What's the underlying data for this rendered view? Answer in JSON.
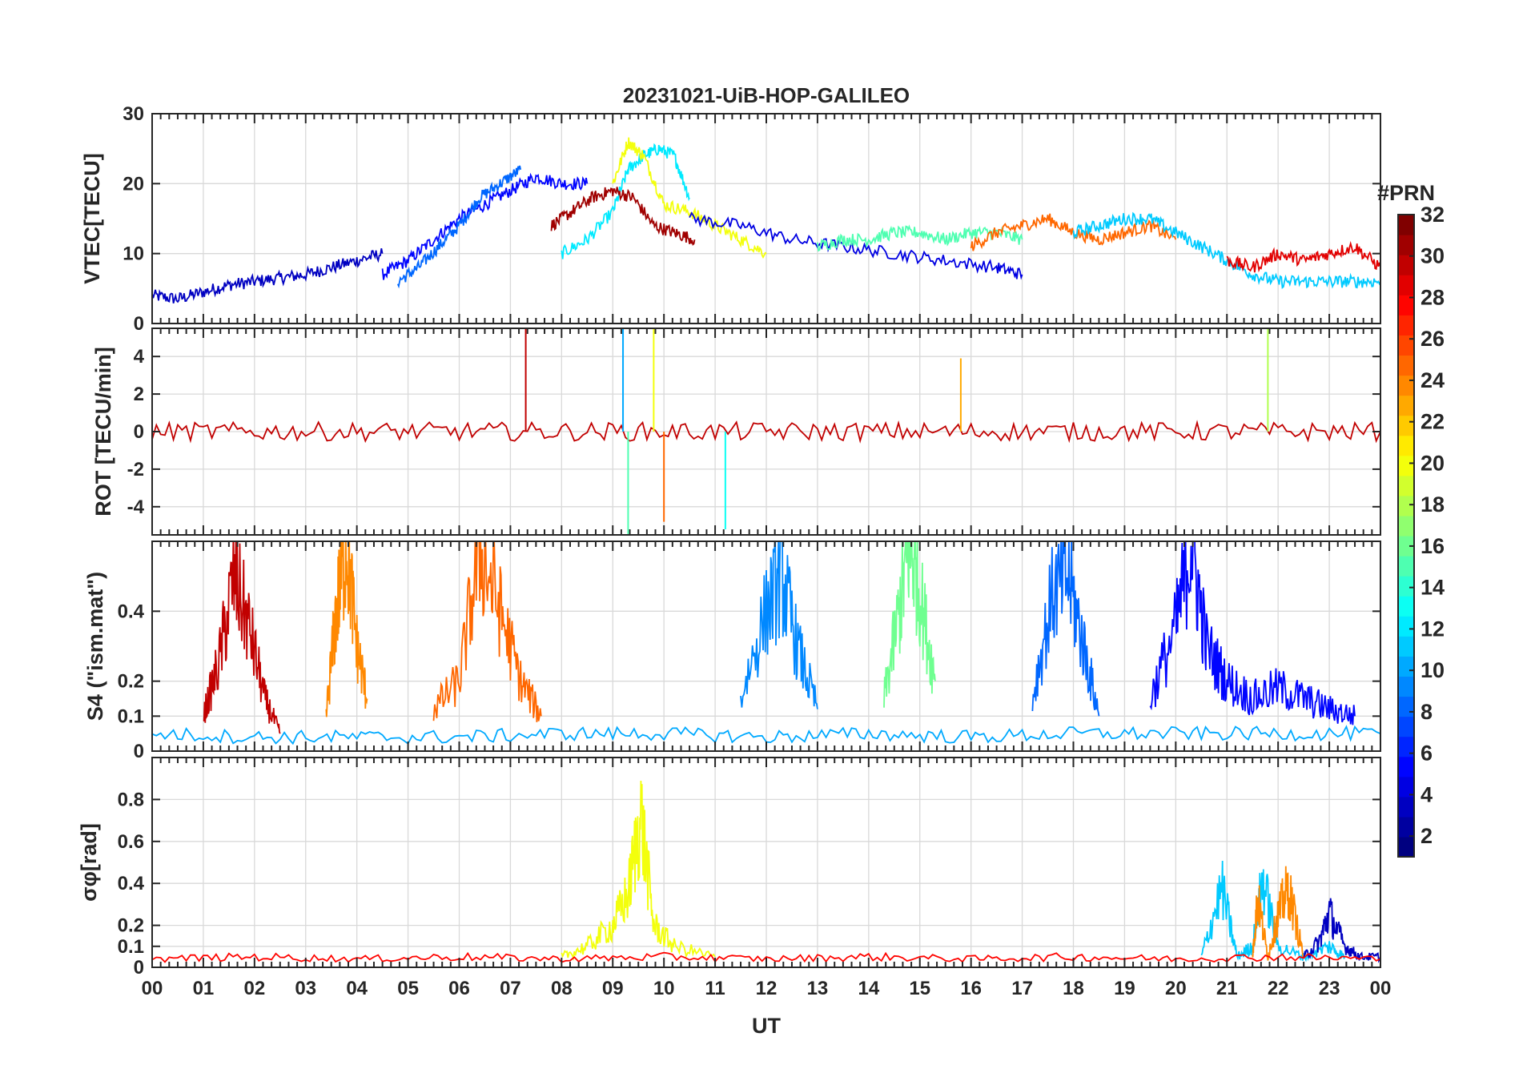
{
  "chart_data": {
    "type": "line",
    "title": "20231021-UiB-HOP-GALILEO",
    "xlabel": "UT",
    "x_ticks": [
      "00",
      "01",
      "02",
      "03",
      "04",
      "05",
      "06",
      "07",
      "08",
      "09",
      "10",
      "11",
      "12",
      "13",
      "14",
      "15",
      "16",
      "17",
      "18",
      "19",
      "20",
      "21",
      "22",
      "23",
      "00"
    ],
    "xlim_hours": [
      0,
      24
    ],
    "grid": true,
    "colorbar": {
      "label": "#PRN",
      "range": [
        1,
        32
      ],
      "ticks": [
        "2",
        "4",
        "6",
        "8",
        "10",
        "12",
        "14",
        "16",
        "18",
        "20",
        "22",
        "24",
        "26",
        "28",
        "30",
        "32"
      ],
      "colormap": "jet",
      "placement": "right"
    },
    "panels": [
      {
        "id": "vtec",
        "ylabel": "VTEC[TECU]",
        "ylim": [
          0,
          30
        ],
        "yticks": [
          "0",
          "10",
          "20",
          "30"
        ],
        "series": [
          {
            "prn": 3,
            "x": [
              0.0,
              0.5,
              1.0,
              1.5,
              2.0,
              2.5,
              3.0,
              3.5,
              4.0,
              4.5
            ],
            "y": [
              4,
              3.5,
              4.5,
              5.5,
              6,
              6.5,
              7,
              8,
              9,
              10
            ]
          },
          {
            "prn": 5,
            "x": [
              4.5,
              5.0,
              5.5,
              6.0,
              6.5,
              7.0,
              7.5,
              8.0,
              8.5
            ],
            "y": [
              7,
              9,
              12,
              15,
              17,
              19,
              21,
              20,
              20
            ]
          },
          {
            "prn": 8,
            "x": [
              4.8,
              5.2,
              5.6,
              6.0,
              6.4,
              6.8,
              7.2
            ],
            "y": [
              6,
              8,
              11,
              14,
              18,
              20,
              22
            ]
          },
          {
            "prn": 12,
            "x": [
              8.0,
              8.5,
              9.0,
              9.3,
              9.6,
              9.9,
              10.2,
              10.5
            ],
            "y": [
              10,
              12,
              16,
              22,
              24,
              25,
              24,
              18
            ]
          },
          {
            "prn": 20,
            "x": [
              9.0,
              9.3,
              9.6,
              10.0,
              10.5,
              11.0,
              11.5,
              12.0
            ],
            "y": [
              20,
              26,
              24,
              17,
              16,
              14,
              12,
              10
            ]
          },
          {
            "prn": 31,
            "x": [
              7.8,
              8.2,
              8.6,
              9.0,
              9.4,
              9.8,
              10.2,
              10.6
            ],
            "y": [
              14,
              16,
              18,
              19,
              18,
              14,
              13,
              12
            ]
          },
          {
            "prn": 4,
            "x": [
              10.5,
              11.5,
              12.5,
              13.5,
              14.5,
              15.5,
              16.5,
              17.0
            ],
            "y": [
              15,
              14,
              12,
              11,
              10,
              9,
              8,
              7
            ]
          },
          {
            "prn": 15,
            "x": [
              13.0,
              13.5,
              14.0,
              14.5,
              15.0,
              15.5,
              16.0,
              16.5,
              17.0
            ],
            "y": [
              11,
              12,
              12,
              13,
              13,
              12,
              13,
              13,
              12
            ]
          },
          {
            "prn": 25,
            "x": [
              16.0,
              16.5,
              17.0,
              17.5,
              18.0,
              18.5,
              19.0,
              19.5,
              20.0
            ],
            "y": [
              11,
              13,
              14,
              15,
              13,
              12,
              13,
              14,
              12
            ]
          },
          {
            "prn": 11,
            "x": [
              18.0,
              18.5,
              19.0,
              19.5,
              20.0,
              20.5,
              21.0,
              21.5,
              22.0,
              22.5,
              23.0,
              23.5,
              24.0
            ],
            "y": [
              13,
              14,
              15,
              15,
              13,
              11,
              9,
              7,
              6,
              6,
              6,
              6,
              6
            ]
          },
          {
            "prn": 29,
            "x": [
              21.0,
              21.5,
              22.0,
              22.5,
              23.0,
              23.5,
              24.0
            ],
            "y": [
              9,
              8,
              10,
              9,
              10,
              11,
              8
            ]
          }
        ]
      },
      {
        "id": "rot",
        "ylabel": "ROT [TECU/min]",
        "ylim": [
          -5.5,
          5.5
        ],
        "yticks": [
          "-4",
          "-2",
          "0",
          "2",
          "4"
        ],
        "series": [
          {
            "prn": 30,
            "x": [
              0,
              2,
              4,
              6,
              8,
              10,
              12,
              14,
              16,
              18,
              20,
              22,
              24
            ],
            "y": [
              0,
              0,
              0,
              0,
              0,
              0,
              0,
              0,
              0,
              0,
              0,
              0,
              0
            ]
          }
        ],
        "notable_spikes": [
          {
            "x": 9.2,
            "y": 5.5
          },
          {
            "x": 9.3,
            "y": -5.5
          },
          {
            "x": 9.8,
            "y": 5.5
          },
          {
            "x": 10.0,
            "y": -4.8
          },
          {
            "x": 7.3,
            "y": 5.5
          },
          {
            "x": 11.2,
            "y": -5.2
          },
          {
            "x": 21.8,
            "y": 5.5
          },
          {
            "x": 15.8,
            "y": 3.9
          }
        ]
      },
      {
        "id": "s4",
        "ylabel": "S4 (\"ism.mat\")",
        "ylim": [
          0,
          0.6
        ],
        "yticks": [
          "0",
          "0.1",
          "0.2",
          "0.4"
        ],
        "series": [
          {
            "prn": 30,
            "x": [
              1.0,
              1.3,
              1.6,
              1.9,
              2.2,
              2.5
            ],
            "y": [
              0.1,
              0.25,
              0.5,
              0.35,
              0.15,
              0.05
            ]
          },
          {
            "prn": 24,
            "x": [
              3.4,
              3.6,
              3.8,
              4.0,
              4.2
            ],
            "y": [
              0.1,
              0.4,
              0.6,
              0.3,
              0.15
            ]
          },
          {
            "prn": 25,
            "x": [
              5.5,
              6.0,
              6.4,
              6.8,
              7.2,
              7.6
            ],
            "y": [
              0.12,
              0.2,
              0.58,
              0.4,
              0.2,
              0.1
            ]
          },
          {
            "prn": 9,
            "x": [
              11.5,
              12.0,
              12.3,
              12.6,
              13.0
            ],
            "y": [
              0.15,
              0.4,
              0.5,
              0.3,
              0.12
            ]
          },
          {
            "prn": 16,
            "x": [
              14.3,
              14.6,
              14.8,
              15.0,
              15.3
            ],
            "y": [
              0.15,
              0.4,
              0.6,
              0.45,
              0.2
            ]
          },
          {
            "prn": 8,
            "x": [
              17.2,
              17.6,
              17.9,
              18.2,
              18.5
            ],
            "y": [
              0.15,
              0.45,
              0.5,
              0.3,
              0.1
            ]
          },
          {
            "prn": 5,
            "x": [
              19.5,
              20.0,
              20.3,
              20.6,
              21.0,
              21.5,
              22.0,
              22.5,
              23.0,
              23.5
            ],
            "y": [
              0.15,
              0.35,
              0.6,
              0.3,
              0.2,
              0.15,
              0.18,
              0.15,
              0.12,
              0.1
            ]
          },
          {
            "prn": 10,
            "x": [
              0,
              2,
              4,
              6,
              8,
              10,
              12,
              14,
              16,
              18,
              20,
              22,
              24
            ],
            "y": [
              0.05,
              0.04,
              0.04,
              0.04,
              0.05,
              0.05,
              0.04,
              0.05,
              0.04,
              0.05,
              0.05,
              0.05,
              0.05
            ]
          }
        ]
      },
      {
        "id": "sigma_phi",
        "ylabel": "σφ[rad]",
        "ylim": [
          0,
          1.0
        ],
        "yticks": [
          "0",
          "0.1",
          "0.2",
          "0.4",
          "0.6",
          "0.8"
        ],
        "series": [
          {
            "prn": 20,
            "x": [
              8.0,
              8.5,
              9.0,
              9.3,
              9.55,
              9.8,
              10.2,
              11.0
            ],
            "y": [
              0.05,
              0.1,
              0.2,
              0.35,
              0.72,
              0.2,
              0.1,
              0.05
            ]
          },
          {
            "prn": 11,
            "x": [
              20.5,
              20.9,
              21.2,
              21.5,
              21.7,
              22.0,
              22.5,
              23.0,
              23.3
            ],
            "y": [
              0.05,
              0.38,
              0.05,
              0.1,
              0.42,
              0.1,
              0.05,
              0.1,
              0.05
            ]
          },
          {
            "prn": 24,
            "x": [
              21.5,
              21.6,
              21.8,
              22.0,
              22.2,
              22.5
            ],
            "y": [
              0.05,
              0.33,
              0.05,
              0.25,
              0.38,
              0.05
            ]
          },
          {
            "prn": 3,
            "x": [
              22.5,
              22.8,
              23.0,
              23.3,
              23.6,
              24.0
            ],
            "y": [
              0.05,
              0.12,
              0.26,
              0.1,
              0.05,
              0.05
            ]
          },
          {
            "prn": 28,
            "x": [
              0,
              2,
              4,
              6,
              8,
              10,
              12,
              14,
              16,
              18,
              20,
              22,
              24
            ],
            "y": [
              0.04,
              0.05,
              0.04,
              0.05,
              0.04,
              0.05,
              0.04,
              0.05,
              0.04,
              0.05,
              0.04,
              0.05,
              0.04
            ]
          }
        ]
      }
    ]
  }
}
